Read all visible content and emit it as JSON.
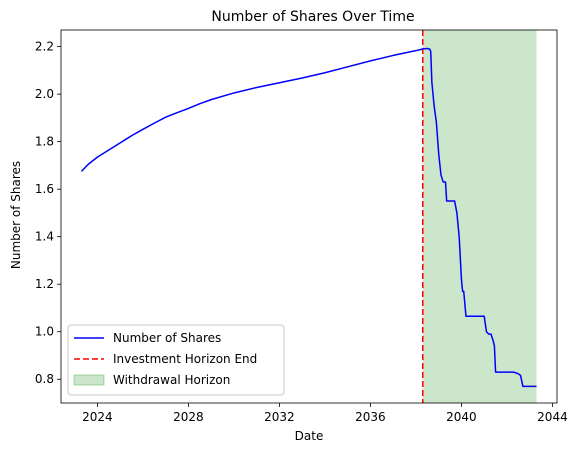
{
  "chart_data": {
    "type": "line",
    "title": "Number of Shares Over Time",
    "xlabel": "Date",
    "ylabel": "Number of Shares",
    "xlim": [
      2022.4,
      2044.2
    ],
    "ylim": [
      0.7,
      2.27
    ],
    "xticks": [
      2024,
      2028,
      2032,
      2036,
      2040,
      2044
    ],
    "yticks": [
      0.8,
      1.0,
      1.2,
      1.4,
      1.6,
      1.8,
      2.0,
      2.2
    ],
    "grid": false,
    "legend_position": "lower-left",
    "series": [
      {
        "name": "Number of Shares",
        "color": "#0000ff",
        "style": "solid",
        "x": [
          2023.3,
          2023.6,
          2024.0,
          2024.5,
          2025.0,
          2025.5,
          2026.0,
          2026.5,
          2027.0,
          2027.5,
          2028.0,
          2028.5,
          2029.0,
          2030.0,
          2031.0,
          2032.0,
          2033.0,
          2034.0,
          2035.0,
          2036.0,
          2037.0,
          2038.0,
          2038.3,
          2038.5,
          2038.6,
          2038.65,
          2038.7,
          2038.8,
          2038.9,
          2039.0,
          2039.1,
          2039.2,
          2039.3,
          2039.35,
          2039.4,
          2039.7,
          2039.8,
          2039.9,
          2040.0,
          2040.05,
          2040.1,
          2040.2,
          2040.3,
          2041.0,
          2041.1,
          2041.2,
          2041.3,
          2041.4,
          2041.45,
          2041.5,
          2041.55,
          2042.3,
          2042.45,
          2042.55,
          2042.6,
          2042.7,
          2043.3
        ],
        "y": [
          1.675,
          1.705,
          1.735,
          1.765,
          1.795,
          1.825,
          1.852,
          1.878,
          1.903,
          1.922,
          1.94,
          1.96,
          1.977,
          2.005,
          2.028,
          2.048,
          2.068,
          2.09,
          2.115,
          2.14,
          2.163,
          2.183,
          2.19,
          2.192,
          2.19,
          2.18,
          2.05,
          1.95,
          1.88,
          1.75,
          1.66,
          1.63,
          1.63,
          1.55,
          1.55,
          1.55,
          1.5,
          1.4,
          1.22,
          1.17,
          1.17,
          1.065,
          1.065,
          1.065,
          1.0,
          0.99,
          0.99,
          0.96,
          0.94,
          0.83,
          0.83,
          0.83,
          0.825,
          0.82,
          0.815,
          0.77,
          0.77
        ]
      },
      {
        "name": "Investment Horizon End",
        "color": "#ff0000",
        "style": "dashed",
        "x_value": 2038.3
      },
      {
        "name": "Withdrawal Horizon",
        "color": "#008000",
        "style": "area",
        "x_range": [
          2038.3,
          2043.3
        ]
      }
    ]
  }
}
